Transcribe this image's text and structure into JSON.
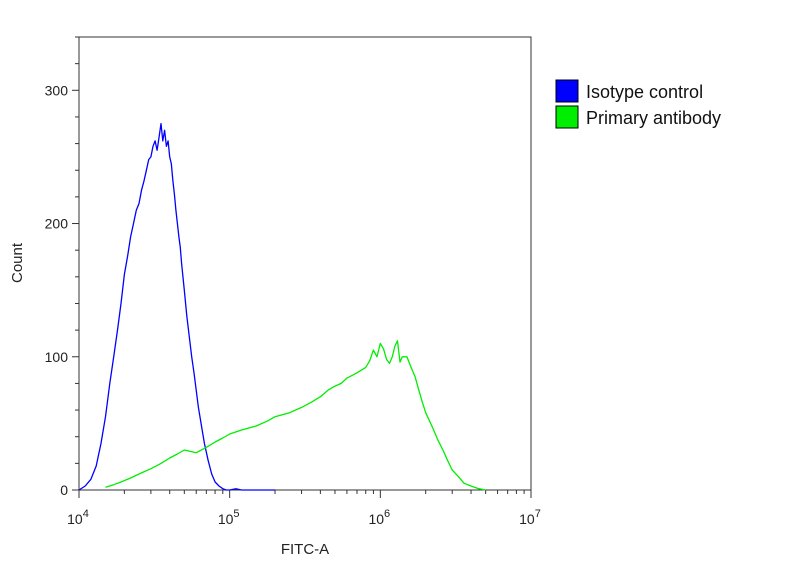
{
  "chart_data": {
    "type": "line",
    "title": "",
    "xlabel": "FITC-A",
    "ylabel": "Count",
    "xscale": "log",
    "xlim": [
      10000,
      10000000
    ],
    "ylim": [
      0,
      340
    ],
    "x_ticks": [
      {
        "base": "10",
        "exp": "4",
        "value": 10000
      },
      {
        "base": "10",
        "exp": "5",
        "value": 100000
      },
      {
        "base": "10",
        "exp": "6",
        "value": 1000000
      },
      {
        "base": "10",
        "exp": "7",
        "value": 10000000
      }
    ],
    "y_ticks": [
      "0",
      "100",
      "200",
      "300"
    ],
    "y_tick_values": [
      0,
      100,
      200,
      300
    ],
    "grid": false,
    "legend_position": "right-top, outside plot",
    "series": [
      {
        "name": "Isotype control",
        "color": "#0000ff",
        "x": [
          10000,
          11000,
          12000,
          13000,
          14000,
          15000,
          16000,
          17000,
          18000,
          19000,
          20000,
          21000,
          22000,
          23000,
          24000,
          25000,
          26000,
          27000,
          28000,
          29000,
          30000,
          31000,
          32000,
          33000,
          34000,
          35000,
          36000,
          37000,
          38000,
          39000,
          40000,
          41000,
          42000,
          43000,
          44000,
          45000,
          46000,
          47000,
          48000,
          50000,
          52000,
          54000,
          56000,
          58000,
          60000,
          62000,
          65000,
          68000,
          72000,
          76000,
          80000,
          85000,
          90000,
          95000,
          100000,
          110000,
          120000,
          140000,
          160000,
          200000
        ],
        "y": [
          0,
          3,
          8,
          18,
          35,
          55,
          80,
          100,
          120,
          140,
          162,
          175,
          190,
          200,
          210,
          215,
          225,
          232,
          240,
          248,
          250,
          258,
          262,
          255,
          265,
          275,
          262,
          270,
          258,
          262,
          250,
          245,
          232,
          222,
          210,
          200,
          190,
          182,
          170,
          150,
          130,
          115,
          100,
          88,
          75,
          62,
          48,
          35,
          22,
          12,
          6,
          3,
          1,
          0,
          0,
          1,
          0,
          0,
          0,
          0
        ]
      },
      {
        "name": "Primary antibody",
        "color": "#00ee00",
        "x": [
          15000,
          17000,
          19000,
          22000,
          25000,
          30000,
          35000,
          40000,
          45000,
          50000,
          60000,
          70000,
          80000,
          90000,
          100000,
          120000,
          150000,
          180000,
          200000,
          250000,
          300000,
          350000,
          400000,
          450000,
          500000,
          550000,
          600000,
          650000,
          700000,
          750000,
          800000,
          850000,
          900000,
          950000,
          1000000,
          1050000,
          1100000,
          1150000,
          1200000,
          1250000,
          1300000,
          1350000,
          1400000,
          1500000,
          1600000,
          1700000,
          1800000,
          1900000,
          2000000,
          2200000,
          2400000,
          2600000,
          2800000,
          3000000,
          3300000,
          3600000,
          4000000,
          4500000,
          5000000
        ],
        "y": [
          2,
          4,
          6,
          9,
          12,
          16,
          20,
          24,
          27,
          30,
          28,
          32,
          36,
          39,
          42,
          45,
          48,
          52,
          55,
          58,
          62,
          66,
          70,
          75,
          78,
          80,
          84,
          86,
          88,
          90,
          92,
          97,
          105,
          100,
          110,
          106,
          98,
          95,
          100,
          108,
          112,
          96,
          100,
          100,
          92,
          85,
          75,
          66,
          58,
          48,
          38,
          30,
          22,
          15,
          10,
          5,
          3,
          1,
          0
        ]
      }
    ]
  }
}
